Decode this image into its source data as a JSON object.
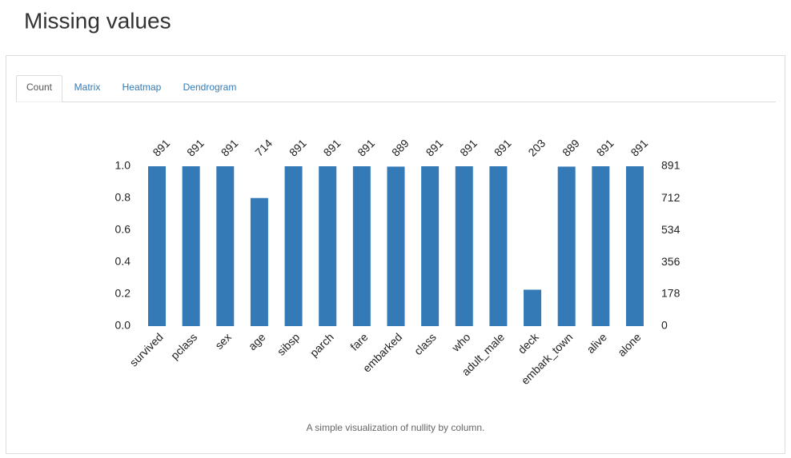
{
  "header": {
    "title": "Missing values"
  },
  "tabs": [
    "Count",
    "Matrix",
    "Heatmap",
    "Dendrogram"
  ],
  "caption": "A simple visualization of nullity by column.",
  "chart_data": {
    "type": "bar",
    "categories": [
      "survived",
      "pclass",
      "sex",
      "age",
      "sibsp",
      "parch",
      "fare",
      "embarked",
      "class",
      "who",
      "adult_male",
      "deck",
      "embark_town",
      "alive",
      "alone"
    ],
    "series": [
      {
        "name": "count",
        "color": "#337ab7",
        "axis": "y2",
        "values": [
          891,
          891,
          891,
          714,
          891,
          891,
          891,
          889,
          891,
          891,
          891,
          203,
          889,
          891,
          891
        ]
      }
    ],
    "ylim": [
      0,
      1
    ],
    "yticks": [
      {
        "value": 0,
        "label": "0.0"
      },
      0.2,
      0.4,
      0.6,
      0.8,
      {
        "value": 1,
        "label": "1.0"
      }
    ],
    "y2lim": [
      0,
      891
    ],
    "y2ticks": [
      0,
      178,
      356,
      534,
      712,
      891
    ],
    "grid": false
  }
}
